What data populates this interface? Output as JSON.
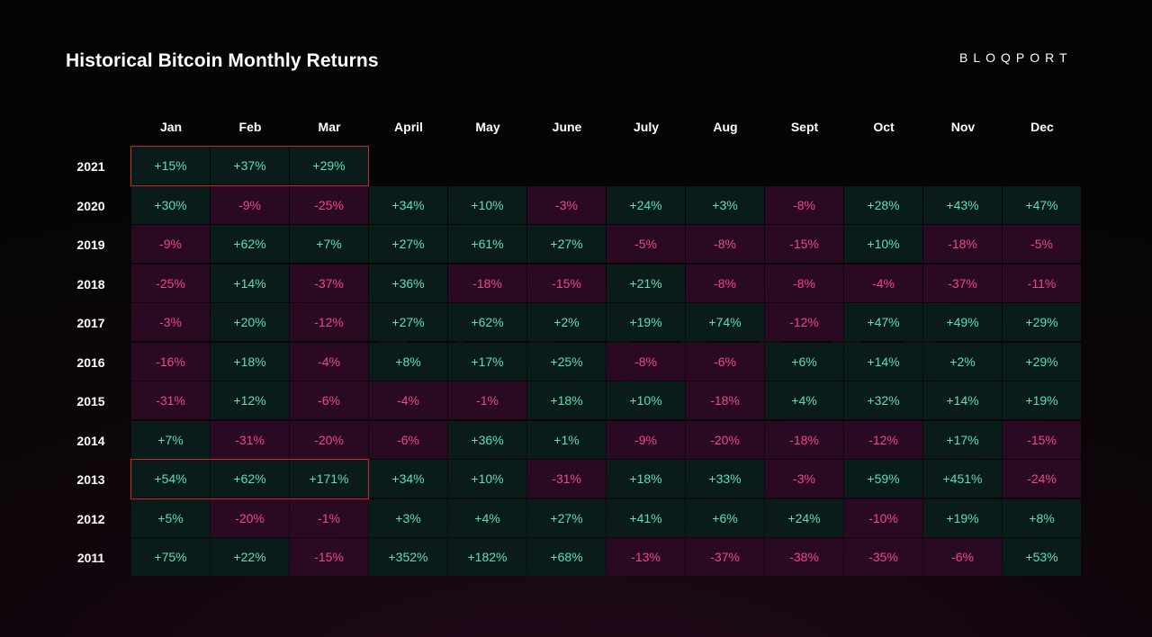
{
  "header": {
    "title": "Historical Bitcoin Monthly Returns",
    "brand": "BLOQPORT",
    "watermark": "BLOQPORT"
  },
  "chart_data": {
    "type": "heatmap",
    "title": "Historical Bitcoin Monthly Returns",
    "months": [
      "Jan",
      "Feb",
      "Mar",
      "April",
      "May",
      "June",
      "July",
      "Aug",
      "Sept",
      "Oct",
      "Nov",
      "Dec"
    ],
    "years": [
      "2021",
      "2020",
      "2019",
      "2018",
      "2017",
      "2016",
      "2015",
      "2014",
      "2013",
      "2012",
      "2011"
    ],
    "values": [
      [
        "+15%",
        "+37%",
        "+29%",
        null,
        null,
        null,
        null,
        null,
        null,
        null,
        null,
        null
      ],
      [
        "+30%",
        "-9%",
        "-25%",
        "+34%",
        "+10%",
        "-3%",
        "+24%",
        "+3%",
        "-8%",
        "+28%",
        "+43%",
        "+47%"
      ],
      [
        "-9%",
        "+62%",
        "+7%",
        "+27%",
        "+61%",
        "+27%",
        "-5%",
        "-8%",
        "-15%",
        "+10%",
        "-18%",
        "-5%"
      ],
      [
        "-25%",
        "+14%",
        "-37%",
        "+36%",
        "-18%",
        "-15%",
        "+21%",
        "-8%",
        "-8%",
        "-4%",
        "-37%",
        "-11%"
      ],
      [
        "-3%",
        "+20%",
        "-12%",
        "+27%",
        "+62%",
        "+2%",
        "+19%",
        "+74%",
        "-12%",
        "+47%",
        "+49%",
        "+29%"
      ],
      [
        "-16%",
        "+18%",
        "-4%",
        "+8%",
        "+17%",
        "+25%",
        "-8%",
        "-6%",
        "+6%",
        "+14%",
        "+2%",
        "+29%"
      ],
      [
        "-31%",
        "+12%",
        "-6%",
        "-4%",
        "-1%",
        "+18%",
        "+10%",
        "-18%",
        "+4%",
        "+32%",
        "+14%",
        "+19%"
      ],
      [
        "+7%",
        "-31%",
        "-20%",
        "-6%",
        "+36%",
        "+1%",
        "-9%",
        "-20%",
        "-18%",
        "-12%",
        "+17%",
        "-15%"
      ],
      [
        "+54%",
        "+62%",
        "+171%",
        "+34%",
        "+10%",
        "-31%",
        "+18%",
        "+33%",
        "-3%",
        "+59%",
        "+451%",
        "-24%"
      ],
      [
        "+5%",
        "-20%",
        "-1%",
        "+3%",
        "+4%",
        "+27%",
        "+41%",
        "+6%",
        "+24%",
        "-10%",
        "+19%",
        "+8%"
      ],
      [
        "+75%",
        "+22%",
        "-15%",
        "+352%",
        "+182%",
        "+68%",
        "-13%",
        "-37%",
        "-38%",
        "-35%",
        "-6%",
        "+53%"
      ]
    ],
    "highlighted_ranges": [
      {
        "year": "2021",
        "months": [
          "Jan",
          "Feb",
          "Mar"
        ]
      },
      {
        "year": "2013",
        "months": [
          "Jan",
          "Feb",
          "Mar"
        ]
      }
    ],
    "colors": {
      "positive_bg": "#0a1c1a",
      "positive_text": "#58e0b8",
      "negative_bg": "#2a0a22",
      "negative_text": "#f0468c",
      "highlight_border": "#c8282e"
    }
  }
}
